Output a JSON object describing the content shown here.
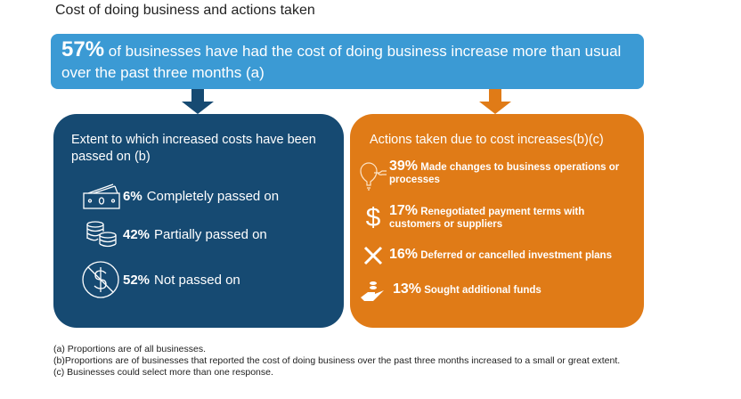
{
  "title": "Cost of doing business and actions taken",
  "banner": {
    "percent": "57%",
    "text": " of businesses have had the cost of doing business increase more than usual over the past three months (a)"
  },
  "left": {
    "heading": "Extent to which increased costs have been passed on (b)",
    "items": [
      {
        "percent": "6%",
        "label": "Completely passed on",
        "icon": "banknote-icon"
      },
      {
        "percent": "42%",
        "label": "Partially passed on",
        "icon": "coins-icon"
      },
      {
        "percent": "52%",
        "label": "Not passed on",
        "icon": "no-dollar-icon"
      }
    ]
  },
  "right": {
    "heading": "Actions taken due to cost increases(b)(c)",
    "items": [
      {
        "percent": "39%",
        "label": "Made changes to business operations or processes",
        "icon": "lightbulb-icon"
      },
      {
        "percent": "17%",
        "label": "Renegotiated payment terms with customers or suppliers",
        "icon": "dollar-icon"
      },
      {
        "percent": "16%",
        "label": "Deferred or cancelled investment plans",
        "icon": "cross-icon"
      },
      {
        "percent": "13%",
        "label": "Sought additional funds",
        "icon": "hand-coins-icon"
      }
    ]
  },
  "footnotes": [
    "(a) Proportions are of all businesses.",
    "(b)Proportions are of businesses that reported the cost of doing business over the past three months increased to a small or great extent.",
    "(c) Businesses could select more than one response."
  ],
  "colors": {
    "banner": "#3b9ad4",
    "left": "#164a72",
    "right": "#e07b17"
  }
}
